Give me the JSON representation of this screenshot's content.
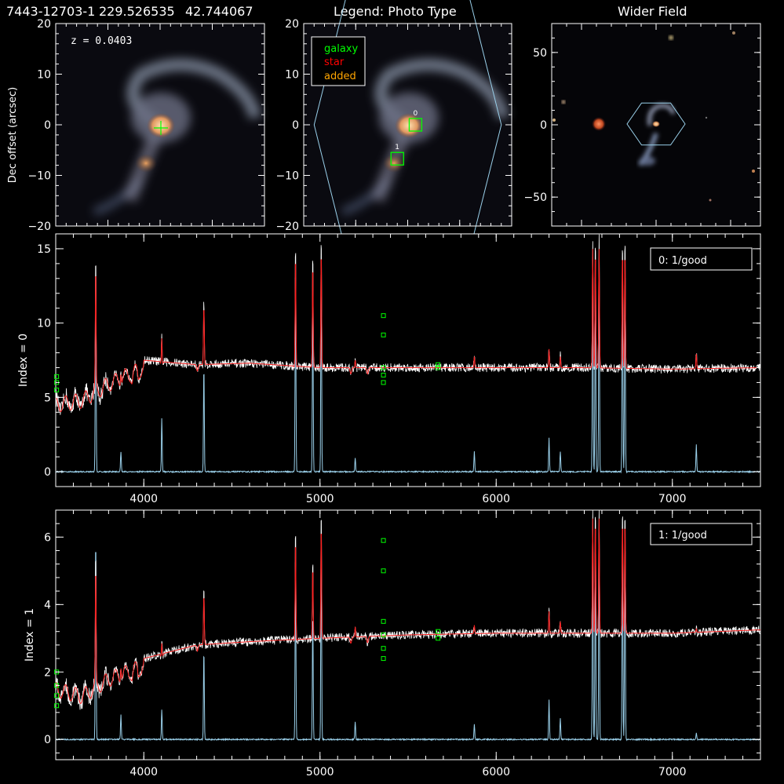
{
  "header": {
    "plate_ifu": "7443-12703-1",
    "ra": "229.526535",
    "dec": "42.744067",
    "legend_title": "Legend: Photo Type",
    "wider_title": "Wider Field"
  },
  "image_panels": {
    "redshift_label": "z = 0.0403",
    "dec_axis_label": "Dec offset (arcsec)",
    "arcsec_ticks": [
      -20,
      -10,
      0,
      10,
      20
    ],
    "wide_ticks": [
      -50,
      0,
      50
    ],
    "legend": [
      {
        "label": "galaxy",
        "color": "#00ff00"
      },
      {
        "label": "star",
        "color": "#ff0000"
      },
      {
        "label": "added",
        "color": "#ffa500"
      }
    ],
    "targets": [
      {
        "label": "0",
        "x": 1.5,
        "y": 0.0
      },
      {
        "label": "1",
        "x": -2.0,
        "y": -6.7
      }
    ],
    "hexagon_radius_arcsec": 18,
    "cross": {
      "x": 0.0,
      "y": -0.7
    }
  },
  "colors": {
    "observed": "#ffffff",
    "model": "#ff2020",
    "residual": "#9ad0ea",
    "mask": "#00ff00",
    "hexagon": "#9ad0ea"
  },
  "chart_data": [
    {
      "type": "line",
      "panel": "index0",
      "ylabel": "Index = 0",
      "status": "0: 1/good",
      "xlim": [
        3500,
        7500
      ],
      "ylim": [
        -1,
        16
      ],
      "xticks": [
        4000,
        5000,
        6000,
        7000
      ],
      "yticks": [
        0,
        5,
        10,
        15
      ],
      "continuum": [
        [
          3500,
          5.0
        ],
        [
          3650,
          5.3
        ],
        [
          3800,
          6.4
        ],
        [
          4000,
          7.5
        ],
        [
          4300,
          7.2
        ],
        [
          4600,
          7.3
        ],
        [
          5000,
          7.0
        ],
        [
          5500,
          7.0
        ],
        [
          6000,
          7.0
        ],
        [
          6500,
          7.0
        ],
        [
          7000,
          6.9
        ],
        [
          7500,
          7.0
        ]
      ],
      "emission_lines": [
        [
          3727,
          16
        ],
        [
          3870,
          1.5
        ],
        [
          4102,
          4
        ],
        [
          4341,
          8
        ],
        [
          4861,
          16
        ],
        [
          4959,
          14
        ],
        [
          5007,
          16
        ],
        [
          5200,
          1.0
        ],
        [
          5876,
          1.5
        ],
        [
          6300,
          2.5
        ],
        [
          6364,
          1.5
        ],
        [
          6548,
          16
        ],
        [
          6563,
          16
        ],
        [
          6584,
          16
        ],
        [
          6717,
          16
        ],
        [
          6731,
          16
        ],
        [
          7136,
          2
        ]
      ],
      "mask_points": [
        [
          3505,
          5.5
        ],
        [
          3505,
          6.0
        ],
        [
          3505,
          6.4
        ],
        [
          5360,
          6.0
        ],
        [
          5360,
          6.5
        ],
        [
          5360,
          7.0
        ],
        [
          5360,
          9.2
        ],
        [
          5360,
          10.5
        ],
        [
          5670,
          7.0
        ],
        [
          5670,
          7.2
        ]
      ]
    },
    {
      "type": "line",
      "panel": "index1",
      "ylabel": "Index = 1",
      "status": "1: 1/good",
      "xlim": [
        3500,
        7500
      ],
      "ylim": [
        -0.6,
        6.8
      ],
      "xticks": [
        4000,
        5000,
        6000,
        7000
      ],
      "yticks": [
        0,
        2,
        4,
        6
      ],
      "continuum": [
        [
          3500,
          1.7
        ],
        [
          3650,
          1.5
        ],
        [
          3800,
          2.0
        ],
        [
          4000,
          2.4
        ],
        [
          4300,
          2.8
        ],
        [
          4600,
          2.9
        ],
        [
          5000,
          3.0
        ],
        [
          5500,
          3.1
        ],
        [
          6000,
          3.15
        ],
        [
          6500,
          3.15
        ],
        [
          7000,
          3.15
        ],
        [
          7500,
          3.25
        ]
      ],
      "emission_lines": [
        [
          3727,
          6.8
        ],
        [
          3870,
          0.8
        ],
        [
          4102,
          1.0
        ],
        [
          4341,
          3.0
        ],
        [
          4861,
          6.4
        ],
        [
          4959,
          4.3
        ],
        [
          5007,
          6.8
        ],
        [
          5200,
          0.6
        ],
        [
          5876,
          0.5
        ],
        [
          6300,
          1.3
        ],
        [
          6364,
          0.7
        ],
        [
          6548,
          6.8
        ],
        [
          6563,
          6.8
        ],
        [
          6584,
          6.8
        ],
        [
          6717,
          6.8
        ],
        [
          6731,
          6.8
        ],
        [
          7136,
          0.2
        ]
      ],
      "mask_points": [
        [
          3505,
          1.0
        ],
        [
          3505,
          1.3
        ],
        [
          3505,
          1.6
        ],
        [
          3505,
          2.0
        ],
        [
          5360,
          2.4
        ],
        [
          5360,
          2.7
        ],
        [
          5360,
          3.1
        ],
        [
          5360,
          3.5
        ],
        [
          5360,
          5.0
        ],
        [
          5360,
          5.9
        ],
        [
          5670,
          3.0
        ],
        [
          5670,
          3.2
        ]
      ]
    }
  ]
}
